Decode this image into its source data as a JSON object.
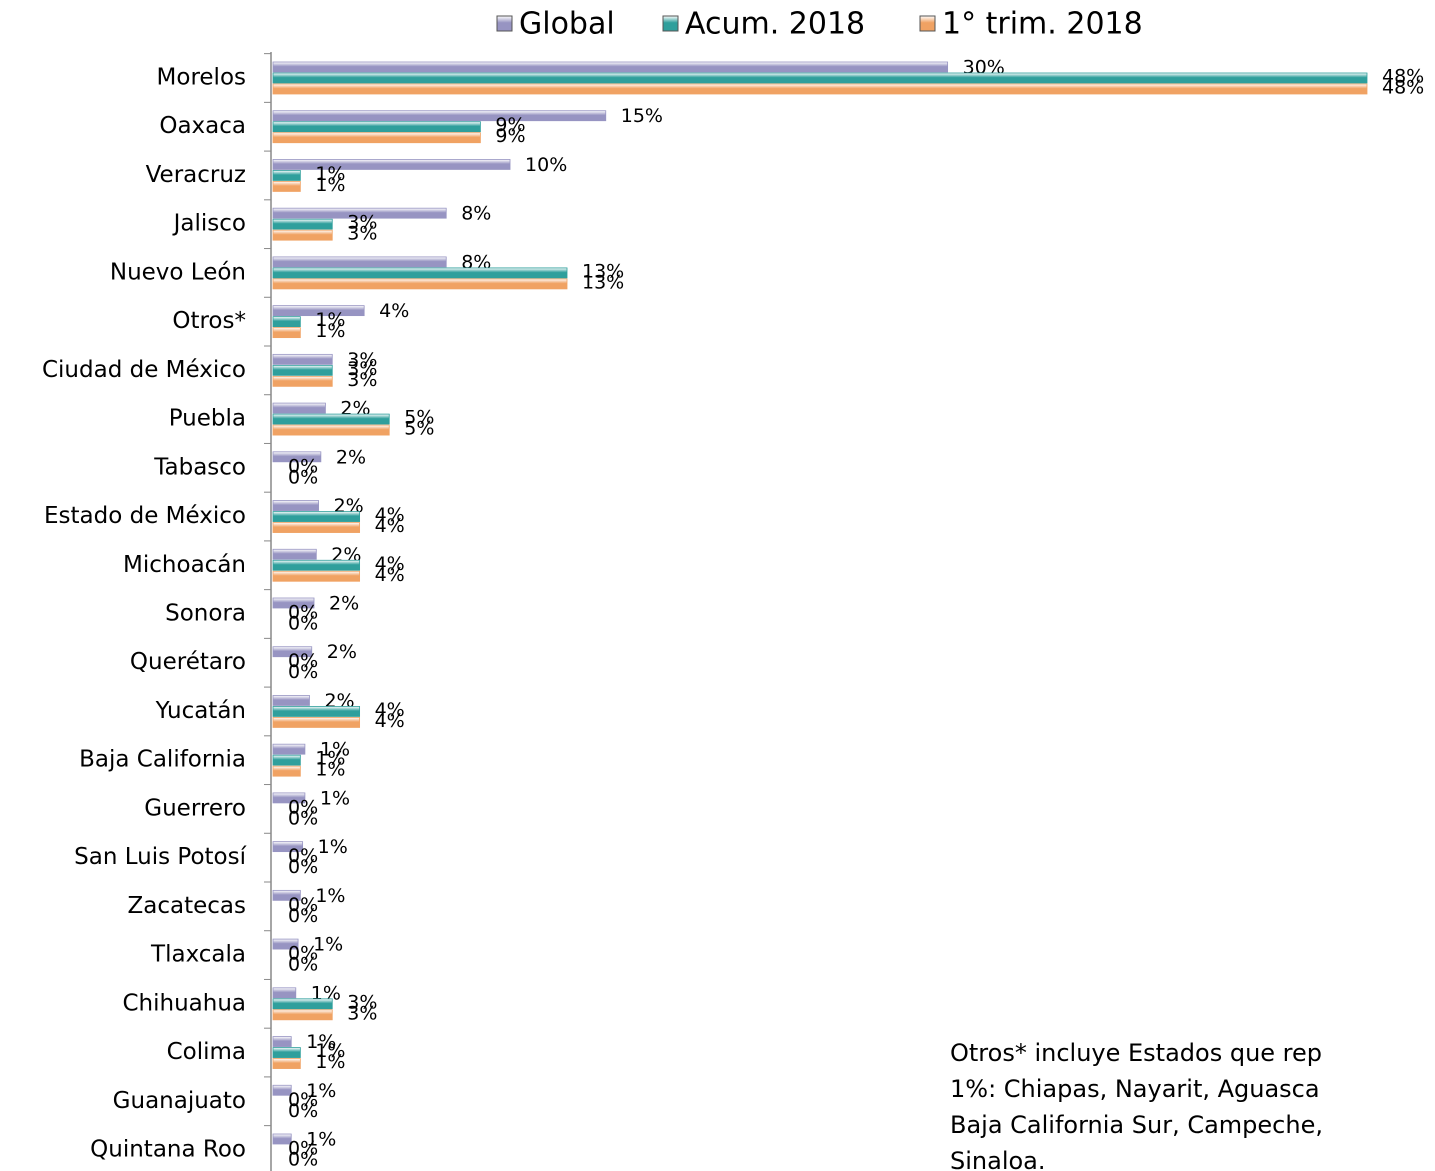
{
  "chart_data": {
    "type": "bar",
    "orientation": "horizontal",
    "legend": "top",
    "categories": [
      "Morelos",
      "Oaxaca",
      "Veracruz",
      "Jalisco",
      "Nuevo León",
      "Otros*",
      "Ciudad de México",
      "Puebla",
      "Tabasco",
      "Estado de México",
      "Michoacán",
      "Sonora",
      "Querétaro",
      "Yucatán",
      "Baja California",
      "Guerrero",
      "San Luis Potosí",
      "Zacatecas",
      "Tlaxcala",
      "Chihuahua",
      "Colima",
      "Guanajuato",
      "Quintana Roo"
    ],
    "series": [
      {
        "name": "Global",
        "color": "#9794c2",
        "values": [
          29.6,
          14.6,
          10.4,
          7.6,
          7.6,
          4.0,
          2.6,
          2.3,
          2.1,
          2.0,
          1.9,
          1.8,
          1.7,
          1.6,
          1.4,
          1.4,
          1.3,
          1.2,
          1.1,
          1.0,
          0.8,
          0.8,
          0.8
        ],
        "value_labels": [
          "30%",
          "15%",
          "10%",
          "8%",
          "8%",
          "4%",
          "3%",
          "2%",
          "2%",
          "2%",
          "2%",
          "2%",
          "2%",
          "2%",
          "1%",
          "1%",
          "1%",
          "1%",
          "1%",
          "1%",
          "1%",
          "1%",
          "1%"
        ]
      },
      {
        "name": "Acum. 2018",
        "color": "#2f9f9c",
        "values": [
          48,
          9.1,
          1.2,
          2.6,
          12.9,
          1.2,
          2.6,
          5.1,
          0,
          3.8,
          3.8,
          0,
          0,
          3.8,
          1.2,
          0,
          0,
          0,
          0,
          2.6,
          1.2,
          0,
          0
        ],
        "value_labels": [
          "48%",
          "9%",
          "1%",
          "3%",
          "13%",
          "1%",
          "3%",
          "5%",
          "0%",
          "4%",
          "4%",
          "0%",
          "0%",
          "4%",
          "1%",
          "0%",
          "0%",
          "0%",
          "0%",
          "3%",
          "1%",
          "0%",
          "0%"
        ]
      },
      {
        "name": "1° trim. 2018",
        "color": "#f0a263",
        "values": [
          48,
          9.1,
          1.2,
          2.6,
          12.9,
          1.2,
          2.6,
          5.1,
          0,
          3.8,
          3.8,
          0,
          0,
          3.8,
          1.2,
          0,
          0,
          0,
          0,
          2.6,
          1.2,
          0,
          0
        ],
        "value_labels": [
          "48%",
          "9%",
          "1%",
          "3%",
          "13%",
          "1%",
          "3%",
          "5%",
          "0%",
          "4%",
          "4%",
          "0%",
          "0%",
          "4%",
          "1%",
          "0%",
          "0%",
          "0%",
          "0%",
          "3%",
          "1%",
          "0%",
          "0%"
        ]
      }
    ],
    "annotation": [
      "Otros* incluye Estados que rep",
      "1%: Chiapas, Nayarit, Aguasca",
      "Baja California Sur, Campeche,",
      "Sinaloa."
    ]
  }
}
